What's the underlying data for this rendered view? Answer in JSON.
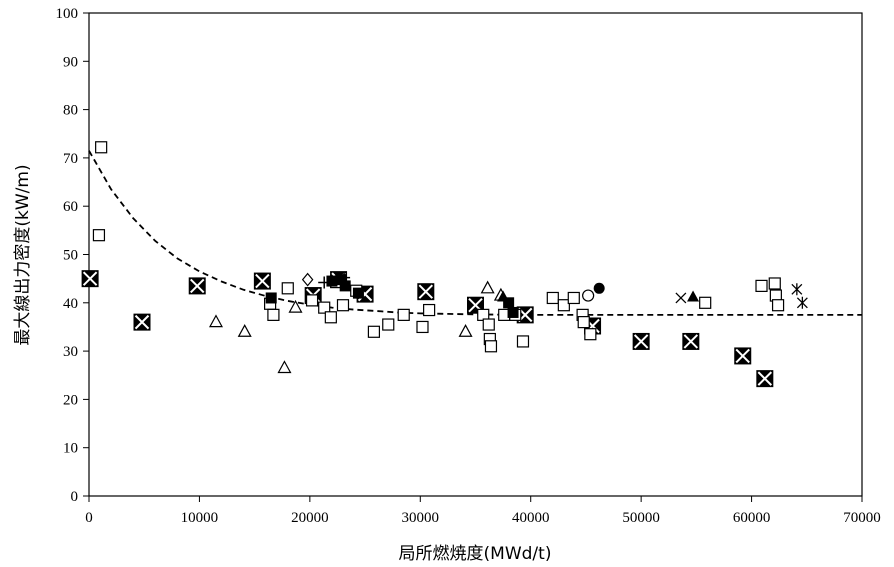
{
  "chart_data": {
    "type": "scatter",
    "xlabel": "局所燃焼度(MWd/t)",
    "ylabel": "最大線出力密度(kW/m)",
    "xlim": [
      0,
      70000
    ],
    "ylim": [
      0,
      100
    ],
    "x_ticks": [
      0,
      10000,
      20000,
      30000,
      40000,
      50000,
      60000,
      70000
    ],
    "y_ticks": [
      0,
      10,
      20,
      30,
      40,
      50,
      60,
      70,
      80,
      90,
      100
    ],
    "grid": false,
    "legend": "none",
    "curve": {
      "style": "dashed",
      "points": [
        [
          0,
          71.5
        ],
        [
          2000,
          63.5
        ],
        [
          4000,
          57.5
        ],
        [
          6000,
          52.8
        ],
        [
          8000,
          49.2
        ],
        [
          10000,
          46.5
        ],
        [
          12000,
          44.4
        ],
        [
          14000,
          42.7
        ],
        [
          16000,
          41.4
        ],
        [
          18000,
          40.4
        ],
        [
          20000,
          39.6
        ],
        [
          22000,
          39
        ],
        [
          24000,
          38.6
        ],
        [
          26000,
          38.3
        ],
        [
          28000,
          38
        ],
        [
          30000,
          37.8
        ],
        [
          35000,
          37.6
        ],
        [
          40000,
          37.5
        ],
        [
          50000,
          37.5
        ],
        [
          60000,
          37.5
        ],
        [
          70000,
          37.5
        ]
      ]
    },
    "series": [
      {
        "marker": "boxed-x",
        "points": [
          [
            100,
            45
          ],
          [
            4800,
            36
          ],
          [
            9800,
            43.5
          ],
          [
            15700,
            44.5
          ],
          [
            20300,
            41.5
          ],
          [
            22600,
            44.8
          ],
          [
            25000,
            41.8
          ],
          [
            30500,
            42.3
          ],
          [
            35000,
            39.5
          ],
          [
            39500,
            37.5
          ],
          [
            45600,
            35.2
          ],
          [
            50000,
            32
          ],
          [
            54500,
            32
          ],
          [
            59200,
            29
          ],
          [
            61200,
            24.3
          ]
        ]
      },
      {
        "marker": "open-square",
        "points": [
          [
            900,
            54
          ],
          [
            1100,
            72.2
          ],
          [
            16400,
            39.8
          ],
          [
            16700,
            37.5
          ],
          [
            18000,
            43
          ],
          [
            20200,
            40.5
          ],
          [
            21300,
            39
          ],
          [
            21900,
            37
          ],
          [
            22400,
            44.3
          ],
          [
            23000,
            39.5
          ],
          [
            24200,
            42.5
          ],
          [
            25800,
            34
          ],
          [
            27100,
            35.5
          ],
          [
            28500,
            37.5
          ],
          [
            30200,
            35
          ],
          [
            30800,
            38.5
          ],
          [
            35700,
            37.5
          ],
          [
            36200,
            35.5
          ],
          [
            36300,
            32.5
          ],
          [
            36400,
            31
          ],
          [
            37600,
            37.5
          ],
          [
            38600,
            37.5
          ],
          [
            39300,
            32
          ],
          [
            42000,
            41
          ],
          [
            43000,
            39.5
          ],
          [
            43900,
            41
          ],
          [
            44700,
            37.5
          ],
          [
            44800,
            36
          ],
          [
            45400,
            33.5
          ],
          [
            55800,
            40
          ],
          [
            60900,
            43.5
          ],
          [
            62100,
            44
          ],
          [
            62200,
            41.5
          ],
          [
            62400,
            39.5
          ]
        ]
      },
      {
        "marker": "filled-square",
        "points": [
          [
            16500,
            41
          ],
          [
            22000,
            44.5
          ],
          [
            22800,
            44.8
          ],
          [
            23200,
            43.5
          ],
          [
            24400,
            42
          ],
          [
            38000,
            40
          ],
          [
            38400,
            38
          ]
        ]
      },
      {
        "marker": "open-triangle",
        "points": [
          [
            11500,
            36
          ],
          [
            14100,
            34
          ],
          [
            17700,
            26.5
          ],
          [
            18700,
            39
          ],
          [
            34100,
            34
          ],
          [
            36100,
            43
          ],
          [
            37300,
            41.5
          ]
        ]
      },
      {
        "marker": "filled-triangle",
        "points": [
          [
            37500,
            41.2
          ],
          [
            54700,
            41.2
          ]
        ]
      },
      {
        "marker": "open-circle",
        "points": [
          [
            45200,
            41.5
          ]
        ]
      },
      {
        "marker": "filled-circle",
        "points": [
          [
            46200,
            43
          ]
        ]
      },
      {
        "marker": "open-diamond",
        "points": [
          [
            19800,
            44.8
          ]
        ]
      },
      {
        "marker": "x",
        "points": [
          [
            53600,
            41
          ]
        ]
      },
      {
        "marker": "asterisk",
        "points": [
          [
            64100,
            42.8
          ],
          [
            64600,
            40
          ]
        ]
      },
      {
        "marker": "plus",
        "points": [
          [
            21300,
            44.2
          ],
          [
            23100,
            45.2
          ]
        ]
      }
    ]
  }
}
